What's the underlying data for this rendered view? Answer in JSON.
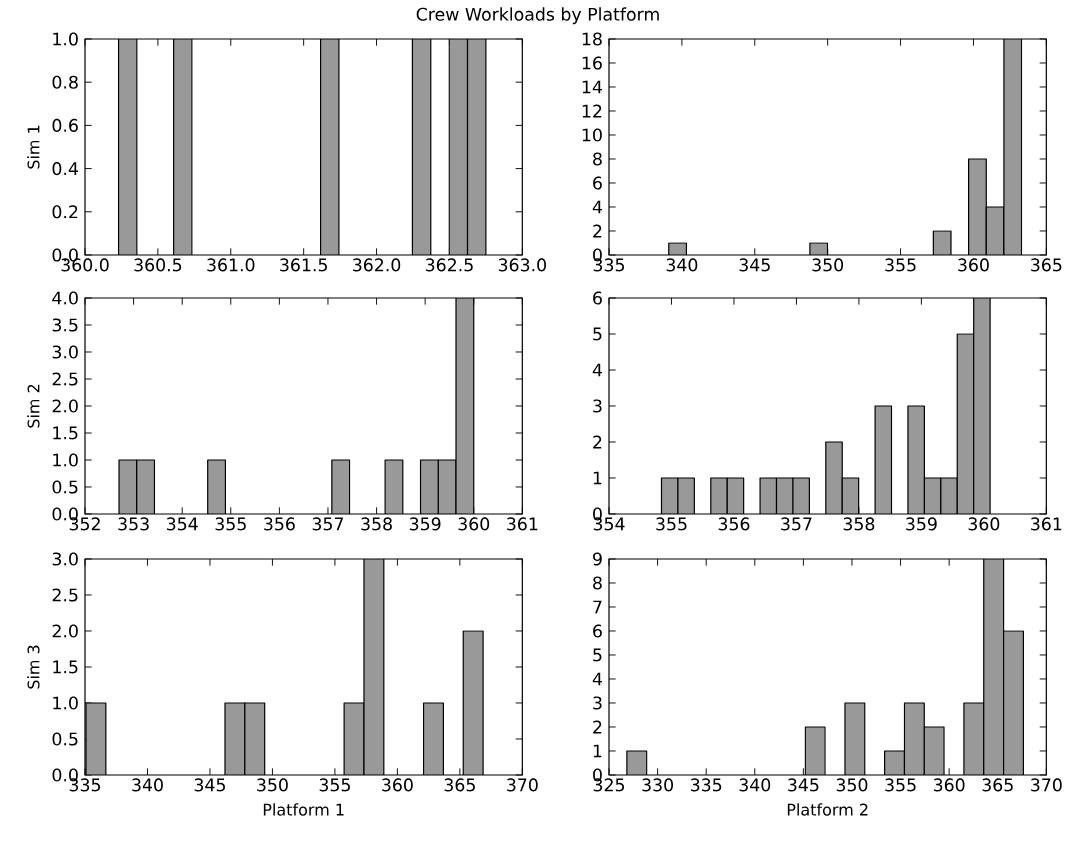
{
  "chart_data": [
    {
      "type": "histogram",
      "title": "Crew Workloads by Platform",
      "ylabel": "Sim 1",
      "color": "#999999",
      "bins": [
        360.23,
        360.356,
        360.482,
        360.608,
        360.734,
        360.86,
        360.986,
        361.112,
        361.238,
        361.364,
        361.49,
        361.616,
        361.742,
        361.868,
        361.994,
        362.12,
        362.246,
        362.372,
        362.498,
        362.624,
        362.75
      ],
      "values": [
        1,
        0,
        0,
        1,
        0,
        0,
        0,
        0,
        0,
        0,
        0,
        1,
        0,
        0,
        0,
        0,
        1,
        0,
        1,
        1
      ],
      "xlim": [
        360,
        363
      ],
      "xticks": [
        {
          "value": 360,
          "label": "360.0"
        },
        360.5,
        {
          "value": 361,
          "label": "361.0"
        },
        361.5,
        {
          "value": 362,
          "label": "362.0"
        },
        362.5,
        {
          "value": 363,
          "label": "363.0"
        }
      ],
      "ylim": [
        0,
        1
      ],
      "yticks": [
        {
          "value": 0,
          "label": "0.0"
        },
        0.2,
        0.4,
        0.6,
        0.8,
        {
          "value": 1,
          "label": "1.0"
        }
      ]
    },
    {
      "type": "histogram",
      "color": "#999999",
      "bins": [
        339.1,
        340.31,
        341.52,
        342.73,
        343.94,
        345.15,
        346.36,
        347.57,
        348.78,
        349.99,
        351.2,
        352.41,
        353.62,
        354.83,
        356.04,
        357.25,
        358.46,
        359.67,
        360.88,
        362.09,
        363.3
      ],
      "values": [
        1,
        0,
        0,
        0,
        0,
        0,
        0,
        0,
        1,
        0,
        0,
        0,
        0,
        0,
        0,
        2,
        0,
        8,
        4,
        18
      ],
      "xlim": [
        335,
        365
      ],
      "xticks": [
        335,
        340,
        345,
        350,
        355,
        360,
        365
      ],
      "ylim": [
        0,
        18
      ],
      "yticks": [
        0,
        2,
        4,
        6,
        8,
        10,
        12,
        14,
        16,
        18
      ]
    },
    {
      "type": "histogram",
      "ylabel": "Sim 2",
      "color": "#999999",
      "bins": [
        352.7,
        353.065,
        353.43,
        353.795,
        354.16,
        354.525,
        354.89,
        355.255,
        355.62,
        355.985,
        356.35,
        356.715,
        357.08,
        357.445,
        357.81,
        358.175,
        358.54,
        358.905,
        359.27,
        359.635,
        360.0
      ],
      "values": [
        1,
        1,
        0,
        0,
        0,
        1,
        0,
        0,
        0,
        0,
        0,
        0,
        1,
        0,
        0,
        1,
        0,
        1,
        1,
        4
      ],
      "xlim": [
        352,
        361
      ],
      "xticks": [
        352,
        353,
        354,
        355,
        356,
        357,
        358,
        359,
        360,
        361
      ],
      "ylim": [
        0,
        4
      ],
      "yticks": [
        {
          "value": 0,
          "label": "0.0"
        },
        0.5,
        {
          "value": 1,
          "label": "1.0"
        },
        1.5,
        {
          "value": 2,
          "label": "2.0"
        },
        2.5,
        {
          "value": 3,
          "label": "3.0"
        },
        3.5,
        {
          "value": 4,
          "label": "4.0"
        }
      ]
    },
    {
      "type": "histogram",
      "color": "#999999",
      "bins": [
        354.84,
        355.103,
        355.366,
        355.629,
        355.892,
        356.155,
        356.418,
        356.681,
        356.944,
        357.207,
        357.47,
        357.733,
        357.996,
        358.259,
        358.522,
        358.785,
        359.048,
        359.311,
        359.574,
        359.837,
        360.1
      ],
      "values": [
        1,
        1,
        0,
        1,
        1,
        0,
        1,
        1,
        1,
        0,
        2,
        1,
        0,
        3,
        0,
        3,
        1,
        1,
        5,
        6
      ],
      "xlim": [
        354,
        361
      ],
      "xticks": [
        354,
        355,
        356,
        357,
        358,
        359,
        360,
        361
      ],
      "ylim": [
        0,
        6
      ],
      "yticks": [
        0,
        1,
        2,
        3,
        4,
        5,
        6
      ]
    },
    {
      "type": "histogram",
      "ylabel": "Sim 3",
      "xlabel": "Platform 1",
      "color": "#999999",
      "bins": [
        335.08,
        336.669,
        338.258,
        339.847,
        341.436,
        343.025,
        344.614,
        346.203,
        347.792,
        349.381,
        350.97,
        352.559,
        354.148,
        355.737,
        357.326,
        358.915,
        360.504,
        362.093,
        363.682,
        365.271,
        366.86
      ],
      "values": [
        1,
        0,
        0,
        0,
        0,
        0,
        0,
        1,
        1,
        0,
        0,
        0,
        0,
        1,
        3,
        0,
        0,
        1,
        0,
        2
      ],
      "xlim": [
        335,
        370
      ],
      "xticks": [
        335,
        340,
        345,
        350,
        355,
        360,
        365,
        370
      ],
      "ylim": [
        0,
        3
      ],
      "yticks": [
        {
          "value": 0,
          "label": "0.0"
        },
        0.5,
        {
          "value": 1,
          "label": "1.0"
        },
        1.5,
        {
          "value": 2,
          "label": "2.0"
        },
        2.5,
        {
          "value": 3,
          "label": "3.0"
        }
      ]
    },
    {
      "type": "histogram",
      "xlabel": "Platform 2",
      "color": "#999999",
      "bins": [
        326.84,
        328.88,
        330.92,
        332.96,
        335.0,
        337.04,
        339.08,
        341.12,
        343.16,
        345.2,
        347.24,
        349.28,
        351.32,
        353.36,
        355.4,
        357.44,
        359.48,
        361.52,
        363.56,
        365.6,
        367.64
      ],
      "values": [
        1,
        0,
        0,
        0,
        0,
        0,
        0,
        0,
        0,
        2,
        0,
        3,
        0,
        1,
        3,
        2,
        0,
        3,
        9,
        6
      ],
      "xlim": [
        325,
        370
      ],
      "xticks": [
        325,
        330,
        335,
        340,
        345,
        350,
        355,
        360,
        365,
        370
      ],
      "ylim": [
        0,
        9
      ],
      "yticks": [
        0,
        1,
        2,
        3,
        4,
        5,
        6,
        7,
        8,
        9
      ]
    }
  ]
}
